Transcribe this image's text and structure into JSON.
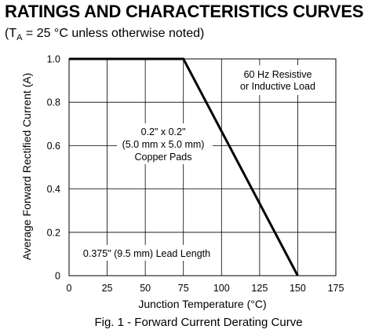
{
  "header": {
    "title": "RATINGS AND CHARACTERISTICS CURVES",
    "condition_prefix": "(T",
    "condition_sub": "A",
    "condition_suffix": " = 25 °C unless otherwise noted)"
  },
  "chart_data": {
    "type": "line",
    "title": "Fig. 1 - Forward Current Derating Curve",
    "xlabel": "Junction Temperature (°C)",
    "ylabel": "Average Forward Rectified Current (A)",
    "xlim": [
      0,
      175
    ],
    "ylim": [
      0,
      1.0
    ],
    "xticks": [
      0,
      25,
      50,
      75,
      100,
      125,
      150,
      175
    ],
    "yticks": [
      0,
      0.2,
      0.4,
      0.6,
      0.8,
      1.0
    ],
    "xtick_labels": [
      "0",
      "25",
      "50",
      "75",
      "100",
      "125",
      "150",
      "175"
    ],
    "ytick_labels": [
      "0",
      "0.2",
      "0.4",
      "0.6",
      "0.8",
      "1.0"
    ],
    "grid": true,
    "series": [
      {
        "x": [
          0,
          75,
          150
        ],
        "y": [
          1.0,
          1.0,
          0
        ]
      }
    ],
    "annotations": {
      "load": [
        "60 Hz Resistive",
        "or Inductive Load"
      ],
      "pads": [
        "0.2\" x 0.2\"",
        "(5.0 mm x 5.0 mm)",
        "Copper Pads"
      ],
      "lead": "0.375\" (9.5 mm) Lead Length"
    }
  }
}
